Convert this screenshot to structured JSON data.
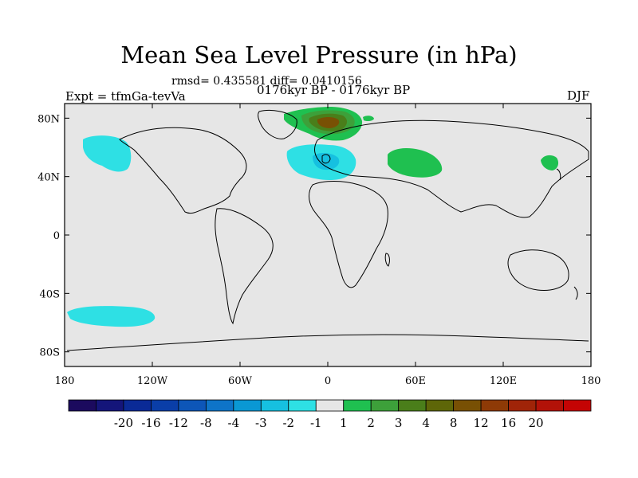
{
  "title": "Mean Sea Level Pressure (in hPa)",
  "subtitle": "rmsd= 0.435581 diff= 0.0410156",
  "left_label": "Expt = tfmGa-tevVa",
  "center_label": "0176kyr BP - 0176kyr BP",
  "right_label": "DJF",
  "chart_data": {
    "type": "map",
    "xlabel": "",
    "ylabel": "",
    "lon_ticks": [
      "180",
      "120W",
      "60W",
      "0",
      "60E",
      "120E",
      "180"
    ],
    "lat_ticks": [
      "80N",
      "40N",
      "0",
      "40S",
      "80S"
    ],
    "xlim": [
      -180,
      180
    ],
    "ylim": [
      -90,
      90
    ],
    "colorbar": {
      "labels": [
        "-20",
        "-16",
        "-12",
        "-8",
        "-4",
        "-3",
        "-2",
        "-1",
        "1",
        "2",
        "3",
        "4",
        "8",
        "12",
        "16",
        "20"
      ],
      "colors": [
        "#1b0a5e",
        "#14157a",
        "#0a2a96",
        "#0a3ea8",
        "#0d56b8",
        "#0e74c8",
        "#0a98d4",
        "#16c0e0",
        "#2ee0e4",
        "#e6e6e6",
        "#1fc050",
        "#3da03a",
        "#4a7e1a",
        "#5e6608",
        "#785004",
        "#8e3a06",
        "#a02408",
        "#b21208",
        "#c40404"
      ]
    },
    "anomalies": [
      {
        "name": "north-pacific-low",
        "sign": "negative",
        "level_color": "#2ee0e4"
      },
      {
        "name": "north-atlantic-low",
        "sign": "negative",
        "level_color": "#2ee0e4",
        "core_color": "#16c0e0"
      },
      {
        "name": "south-pacific-low",
        "sign": "negative",
        "level_color": "#2ee0e4"
      },
      {
        "name": "arctic-high",
        "sign": "positive",
        "level_color": "#1fc050",
        "core_color": "#785004"
      },
      {
        "name": "eurasia-high",
        "sign": "positive",
        "level_color": "#1fc050"
      },
      {
        "name": "east-asia-high",
        "sign": "positive",
        "level_color": "#1fc050"
      }
    ]
  }
}
